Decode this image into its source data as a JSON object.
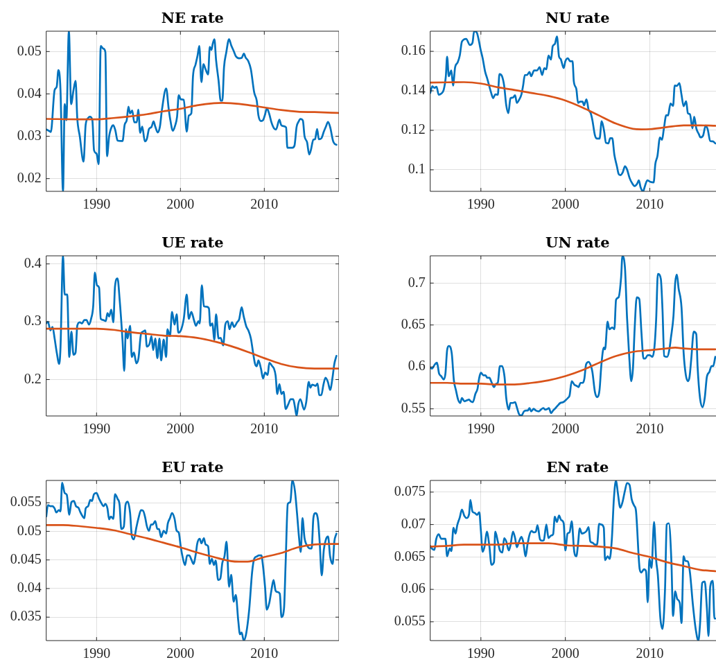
{
  "chart_data": [
    {
      "type": "line",
      "title": "NE rate",
      "xlim": [
        1984,
        2018.9
      ],
      "xticks": [
        1990,
        2000,
        2010
      ],
      "ylim": [
        0.017,
        0.0548
      ],
      "yticks": [
        0.02,
        0.03,
        0.04,
        0.05
      ],
      "grid": true,
      "series": [
        {
          "color": "#0072bd",
          "x": [
            1984,
            1984.4,
            1984.55,
            1985,
            1985.25,
            1985.45,
            1985.7,
            1986,
            1986.2,
            1986.4,
            1986.7,
            1986.97,
            1987.25,
            1987.5,
            1987.7,
            1988,
            1988.45,
            1988.7,
            1989,
            1989.2,
            1989.5,
            1989.7,
            1990,
            1990.25,
            1990.5,
            1990.8,
            1991.05,
            1991.25,
            1991.5,
            1991.85,
            1992,
            1992.25,
            1992.5,
            1992.95,
            1993.1,
            1993.35,
            1993.6,
            1993.8,
            1994,
            1994.25,
            1994.5,
            1994.8,
            1994.97,
            1995.2,
            1995.45,
            1995.75,
            1996,
            1996.25,
            1996.55,
            1996.8,
            1997,
            1997.3,
            1997.55,
            1997.8,
            1998.3,
            1998.6,
            1998.8,
            1999.1,
            1999.35,
            1999.6,
            1999.8,
            2000.05,
            2000.4,
            2000.75,
            2001,
            2001.3,
            2001.5,
            2001.8,
            2002.05,
            2002.25,
            2002.5,
            2002.75,
            2003,
            2003.3,
            2003.5,
            2003.7,
            2003.85,
            2004.05,
            2004.25,
            2004.55,
            2004.8,
            2005,
            2005.2,
            2005.45,
            2005.8,
            2006.05,
            2006.4,
            2006.6,
            2007,
            2007.3,
            2007.57,
            2007.77,
            2008.1,
            2008.4,
            2008.8,
            2009.1,
            2009.3,
            2009.6,
            2009.85,
            2010.1,
            2010.3,
            2010.6,
            2010.85,
            2011.15,
            2011.4,
            2011.8,
            2012,
            2012.25,
            2012.6,
            2012.75,
            2013.1,
            2013.35,
            2013.6,
            2013.85,
            2014.1,
            2014.3,
            2014.6,
            2014.8,
            2015.1,
            2015.35,
            2015.55,
            2015.85,
            2016.05,
            2016.3,
            2016.5,
            2016.8,
            2017.1,
            2017.35,
            2017.6,
            2017.85,
            2018.2,
            2018.4,
            2018.6
          ],
          "values": [
            0.0316,
            0.0312,
            0.031,
            0.0409,
            0.0417,
            0.0456,
            0.0409,
            0.017,
            0.0376,
            0.0338,
            0.0548,
            0.0376,
            0.0409,
            0.0431,
            0.0343,
            0.03,
            0.024,
            0.0327,
            0.0343,
            0.0346,
            0.0338,
            0.0267,
            0.0259,
            0.0234,
            0.0513,
            0.0507,
            0.0499,
            0.0253,
            0.03,
            0.0324,
            0.0326,
            0.0313,
            0.029,
            0.0289,
            0.0289,
            0.0327,
            0.0338,
            0.037,
            0.0354,
            0.0361,
            0.0333,
            0.0333,
            0.0363,
            0.0308,
            0.0323,
            0.0288,
            0.0294,
            0.0317,
            0.0322,
            0.0335,
            0.0323,
            0.0309,
            0.0322,
            0.0363,
            0.0413,
            0.0365,
            0.0338,
            0.0313,
            0.0324,
            0.0346,
            0.0397,
            0.0387,
            0.0386,
            0.0311,
            0.0349,
            0.0354,
            0.0442,
            0.0469,
            0.0491,
            0.0513,
            0.0428,
            0.047,
            0.0458,
            0.0446,
            0.0511,
            0.0504,
            0.0518,
            0.0529,
            0.048,
            0.0431,
            0.0384,
            0.0384,
            0.0463,
            0.0496,
            0.0529,
            0.0515,
            0.0499,
            0.0489,
            0.0484,
            0.0485,
            0.0495,
            0.0486,
            0.0477,
            0.0458,
            0.0403,
            0.0384,
            0.0349,
            0.0336,
            0.0338,
            0.0352,
            0.0366,
            0.0352,
            0.0333,
            0.0319,
            0.0316,
            0.0339,
            0.0327,
            0.0324,
            0.0321,
            0.0273,
            0.0273,
            0.0273,
            0.0278,
            0.0322,
            0.0335,
            0.0341,
            0.0337,
            0.03,
            0.0286,
            0.0257,
            0.0267,
            0.0292,
            0.0293,
            0.0317,
            0.0293,
            0.0295,
            0.0311,
            0.0323,
            0.0334,
            0.0322,
            0.0289,
            0.0282,
            0.028
          ]
        },
        {
          "color": "#d95319",
          "x": [
            1984,
            1988,
            1990,
            1992,
            1994,
            1996,
            1998,
            2000,
            2002,
            2004,
            2005,
            2006,
            2008,
            2010,
            2012,
            2014,
            2016,
            2018.8
          ],
          "values": [
            0.0341,
            0.034,
            0.034,
            0.0343,
            0.0347,
            0.0352,
            0.0359,
            0.0365,
            0.0373,
            0.0378,
            0.0379,
            0.0378,
            0.0374,
            0.0368,
            0.0362,
            0.0358,
            0.0357,
            0.0355
          ]
        }
      ]
    },
    {
      "type": "line",
      "title": "NU rate",
      "xlim": [
        1984,
        2018.9
      ],
      "xticks": [
        1990,
        2000,
        2010
      ],
      "ylim": [
        0.0891,
        0.1702
      ],
      "yticks": [
        0.1,
        0.12,
        0.14,
        0.16
      ],
      "grid": true,
      "series": [
        {
          "color": "#0072bd",
          "x": [
            1984,
            1984.25,
            1984.5,
            1984.75,
            1985,
            1985.3,
            1985.6,
            1985.85,
            1986,
            1986.2,
            1986.5,
            1986.7,
            1986.95,
            1987.25,
            1987.5,
            1987.75,
            1988.25,
            1988.7,
            1989,
            1989.2,
            1989.5,
            1990,
            1990.2,
            1990.5,
            1990.75,
            1991.2,
            1991.45,
            1991.7,
            1992,
            1992.2,
            1992.5,
            1992.75,
            1993,
            1993.25,
            1993.5,
            1993.8,
            1994.05,
            1994.25,
            1994.55,
            1994.8,
            1995,
            1995.2,
            1995.45,
            1995.75,
            1995.95,
            1996.3,
            1996.65,
            1996.95,
            1997.25,
            1997.5,
            1997.75,
            1998,
            1998.3,
            1998.5,
            1998.75,
            1999,
            1999.25,
            1999.45,
            1999.8,
            2000,
            2000.3,
            2000.55,
            2000.85,
            2001,
            2001.3,
            2001.5,
            2001.75,
            2002.05,
            2002.2,
            2002.5,
            2002.75,
            2003,
            2003.2,
            2003.5,
            2003.75,
            2004.05,
            2004.3,
            2004.6,
            2004.8,
            2005.1,
            2005.3,
            2005.55,
            2005.8,
            2006.1,
            2006.3,
            2006.5,
            2006.8,
            2007.05,
            2007.3,
            2007.6,
            2007.85,
            2008.2,
            2008.5,
            2008.7,
            2008.9,
            2009.2,
            2009.4,
            2009.7,
            2010.05,
            2010.45,
            2010.65,
            2010.9,
            2011.2,
            2011.45,
            2011.65,
            2011.95,
            2012.15,
            2012.45,
            2012.75,
            2012.95,
            2013.2,
            2013.5,
            2013.75,
            2014,
            2014.3,
            2014.5,
            2014.75,
            2015.05,
            2015.25,
            2015.5,
            2015.8,
            2016,
            2016.3,
            2016.6,
            2016.85,
            2017.15,
            2017.45,
            2017.75
          ],
          "values": [
            0.1389,
            0.1423,
            0.1415,
            0.1421,
            0.138,
            0.1386,
            0.1406,
            0.1474,
            0.1573,
            0.1474,
            0.1503,
            0.1427,
            0.152,
            0.1544,
            0.1579,
            0.1649,
            0.1663,
            0.1632,
            0.1643,
            0.1702,
            0.1696,
            0.1602,
            0.1567,
            0.1497,
            0.1462,
            0.1392,
            0.1363,
            0.1382,
            0.138,
            0.1485,
            0.1474,
            0.1427,
            0.1327,
            0.1287,
            0.1363,
            0.1366,
            0.1378,
            0.1339,
            0.1357,
            0.1382,
            0.1427,
            0.148,
            0.148,
            0.1495,
            0.1474,
            0.1503,
            0.1503,
            0.152,
            0.148,
            0.1515,
            0.1509,
            0.1579,
            0.1558,
            0.1626,
            0.1637,
            0.1675,
            0.1573,
            0.1561,
            0.1515,
            0.155,
            0.1565,
            0.155,
            0.155,
            0.1448,
            0.1409,
            0.1339,
            0.1345,
            0.1345,
            0.1327,
            0.1357,
            0.1304,
            0.1287,
            0.1251,
            0.1175,
            0.1158,
            0.1158,
            0.1246,
            0.1193,
            0.1137,
            0.1134,
            0.116,
            0.116,
            0.1076,
            0.1018,
            0.098,
            0.0973,
            0.0988,
            0.1018,
            0.1002,
            0.0959,
            0.0936,
            0.0918,
            0.093,
            0.0947,
            0.0912,
            0.0891,
            0.0915,
            0.0947,
            0.0939,
            0.0936,
            0.1029,
            0.107,
            0.1164,
            0.1152,
            0.1205,
            0.1277,
            0.1275,
            0.1336,
            0.1324,
            0.1427,
            0.1425,
            0.1439,
            0.138,
            0.1322,
            0.1347,
            0.1287,
            0.1281,
            0.121,
            0.1269,
            0.121,
            0.1181,
            0.1164,
            0.1173,
            0.1222,
            0.1205,
            0.1146,
            0.1144,
            0.1134
          ]
        },
        {
          "color": "#d95319",
          "x": [
            1984,
            1986,
            1988,
            1990,
            1992,
            1994,
            1996,
            1998,
            2000,
            2002,
            2004,
            2006,
            2008,
            2009,
            2010,
            2012,
            2014,
            2016,
            2017.75
          ],
          "values": [
            0.1442,
            0.1443,
            0.1444,
            0.1437,
            0.1418,
            0.1404,
            0.1389,
            0.1374,
            0.1351,
            0.1316,
            0.1275,
            0.1234,
            0.1208,
            0.1205,
            0.1206,
            0.1216,
            0.1225,
            0.1225,
            0.1223
          ]
        }
      ]
    },
    {
      "type": "line",
      "title": "UE rate",
      "xlim": [
        1984,
        2018.9
      ],
      "xticks": [
        1990,
        2000,
        2010
      ],
      "ylim": [
        0.137,
        0.414
      ],
      "yticks": [
        0.2,
        0.3,
        0.4
      ],
      "grid": true,
      "series": [
        {
          "color": "#0072bd",
          "x": [
            1984,
            1984.2,
            1984.5,
            1984.75,
            1985,
            1985.25,
            1985.55,
            1985.7,
            1986,
            1986.2,
            1986.5,
            1986.75,
            1987,
            1987.25,
            1987.5,
            1987.7,
            1988,
            1988.25,
            1988.55,
            1988.8,
            1989.1,
            1989.35,
            1989.6,
            1989.8,
            1990.05,
            1990.3,
            1990.5,
            1990.8,
            1991.1,
            1991.3,
            1991.5,
            1991.75,
            1992,
            1992.2,
            1992.5,
            1992.75,
            1993.1,
            1993.3,
            1993.5,
            1993.7,
            1994,
            1994.2,
            1994.45,
            1994.75,
            1995,
            1995.3,
            1995.55,
            1995.8,
            1996,
            1996.3,
            1996.55,
            1996.75,
            1997,
            1997.25,
            1997.5,
            1997.7,
            1998,
            1998.3,
            1998.45,
            1998.75,
            1999,
            1999.3,
            1999.55,
            1999.75,
            2000.05,
            2000.4,
            2000.75,
            2001,
            2001.3,
            2001.65,
            2001.85,
            2002.15,
            2002.3,
            2002.55,
            2002.8,
            2003.1,
            2003.4,
            2003.55,
            2003.8,
            2004.05,
            2004.25,
            2004.55,
            2004.8,
            2005.1,
            2005.35,
            2005.65,
            2005.85,
            2006.15,
            2006.4,
            2006.75,
            2007,
            2007.3,
            2007.55,
            2007.85,
            2008.1,
            2008.4,
            2008.7,
            2008.9,
            2009.1,
            2009.3,
            2009.6,
            2009.85,
            2010.1,
            2010.4,
            2010.6,
            2010.95,
            2011.15,
            2011.35,
            2011.55,
            2011.8,
            2012.05,
            2012.3,
            2012.55,
            2012.85,
            2013.15,
            2013.45,
            2013.65,
            2013.85,
            2014.05,
            2014.3,
            2014.75,
            2015,
            2015.3,
            2015.5,
            2015.7,
            2015.95,
            2016.1,
            2016.35,
            2016.55,
            2016.8,
            2017.05,
            2017.3,
            2017.6,
            2017.85,
            2018.15,
            2018.35,
            2018.6
          ],
          "values": [
            0.297,
            0.3,
            0.285,
            0.291,
            0.271,
            0.247,
            0.227,
            0.255,
            0.414,
            0.347,
            0.347,
            0.239,
            0.283,
            0.243,
            0.247,
            0.293,
            0.299,
            0.297,
            0.303,
            0.303,
            0.295,
            0.305,
            0.327,
            0.385,
            0.363,
            0.359,
            0.305,
            0.303,
            0.301,
            0.315,
            0.309,
            0.321,
            0.299,
            0.361,
            0.375,
            0.339,
            0.267,
            0.215,
            0.287,
            0.271,
            0.293,
            0.239,
            0.247,
            0.228,
            0.237,
            0.279,
            0.283,
            0.285,
            0.257,
            0.261,
            0.275,
            0.251,
            0.271,
            0.237,
            0.271,
            0.233,
            0.269,
            0.239,
            0.287,
            0.275,
            0.317,
            0.295,
            0.313,
            0.281,
            0.285,
            0.305,
            0.347,
            0.305,
            0.317,
            0.301,
            0.293,
            0.301,
            0.297,
            0.363,
            0.327,
            0.326,
            0.323,
            0.293,
            0.297,
            0.269,
            0.313,
            0.271,
            0.272,
            0.259,
            0.295,
            0.301,
            0.287,
            0.299,
            0.291,
            0.299,
            0.304,
            0.325,
            0.309,
            0.292,
            0.285,
            0.271,
            0.243,
            0.227,
            0.223,
            0.233,
            0.219,
            0.202,
            0.212,
            0.208,
            0.229,
            0.223,
            0.219,
            0.207,
            0.175,
            0.192,
            0.175,
            0.179,
            0.149,
            0.157,
            0.166,
            0.166,
            0.153,
            0.137,
            0.157,
            0.166,
            0.148,
            0.161,
            0.196,
            0.186,
            0.191,
            0.19,
            0.189,
            0.193,
            0.173,
            0.173,
            0.191,
            0.203,
            0.195,
            0.182,
            0.205,
            0.227,
            0.241
          ]
        },
        {
          "color": "#d95319",
          "x": [
            1984,
            1986,
            1988,
            1990,
            1992,
            1994,
            1996,
            1998,
            2000,
            2002,
            2004,
            2006,
            2008,
            2010,
            2012,
            2014,
            2016,
            2018.8
          ],
          "values": [
            0.288,
            0.288,
            0.288,
            0.288,
            0.286,
            0.282,
            0.279,
            0.276,
            0.275,
            0.272,
            0.266,
            0.258,
            0.248,
            0.237,
            0.227,
            0.221,
            0.219,
            0.219
          ]
        }
      ]
    },
    {
      "type": "line",
      "title": "UN rate",
      "xlim": [
        1984,
        2018.9
      ],
      "xticks": [
        1990,
        2000,
        2010
      ],
      "ylim": [
        0.5415,
        0.7325
      ],
      "yticks": [
        0.55,
        0.6,
        0.65,
        0.7
      ],
      "grid": true,
      "series": [
        {
          "color": "#0072bd",
          "x": [
            1984,
            1984.2,
            1984.55,
            1984.8,
            1985.05,
            1985.3,
            1985.6,
            1985.8,
            1986,
            1986.2,
            1986.55,
            1986.8,
            1987.05,
            1987.3,
            1987.55,
            1987.75,
            1988.05,
            1988.3,
            1988.6,
            1988.8,
            1989.05,
            1989.35,
            1989.6,
            1989.8,
            1990,
            1990.3,
            1990.55,
            1990.75,
            1991,
            1991.25,
            1991.55,
            1991.8,
            1992,
            1992.25,
            1992.5,
            1992.8,
            1993,
            1993.3,
            1993.5,
            1993.8,
            1994.05,
            1994.25,
            1994.55,
            1994.8,
            1995.1,
            1995.35,
            1995.55,
            1995.75,
            1995.95,
            1996.25,
            1996.5,
            1996.85,
            1997.1,
            1997.4,
            1997.6,
            1997.9,
            1998.05,
            1998.3,
            1998.55,
            1998.85,
            1999.1,
            1999.4,
            1999.75,
            2000,
            2000.3,
            2000.5,
            2000.75,
            2001.05,
            2001.4,
            2001.55,
            2001.8,
            2002.05,
            2002.25,
            2002.45,
            2002.75,
            2003,
            2003.2,
            2003.5,
            2003.75,
            2004.05,
            2004.25,
            2004.55,
            2004.7,
            2005,
            2005.2,
            2005.55,
            2005.8,
            2006,
            2006.3,
            2006.6,
            2006.75,
            2007.05,
            2007.3,
            2007.55,
            2007.8,
            2008,
            2008.2,
            2008.45,
            2008.75,
            2009,
            2009.25,
            2009.45,
            2009.75,
            2010,
            2010.3,
            2010.55,
            2010.75,
            2010.95,
            2011.3,
            2011.5,
            2011.7,
            2012.05,
            2012.3,
            2012.5,
            2012.8,
            2013,
            2013.2,
            2013.4,
            2013.75,
            2014,
            2014.25,
            2014.5,
            2014.7,
            2014.9,
            2015.2,
            2015.5,
            2015.65,
            2015.95,
            2016.25,
            2016.5,
            2016.75,
            2017.05,
            2017.3,
            2017.5,
            2017.75
          ],
          "values": [
            0.599,
            0.598,
            0.603,
            0.605,
            0.592,
            0.589,
            0.585,
            0.592,
            0.62,
            0.625,
            0.616,
            0.584,
            0.572,
            0.561,
            0.557,
            0.563,
            0.559,
            0.56,
            0.561,
            0.559,
            0.558,
            0.568,
            0.574,
            0.587,
            0.593,
            0.59,
            0.59,
            0.587,
            0.587,
            0.582,
            0.576,
            0.58,
            0.581,
            0.601,
            0.601,
            0.588,
            0.563,
            0.549,
            0.557,
            0.557,
            0.558,
            0.552,
            0.543,
            0.542,
            0.547,
            0.548,
            0.548,
            0.551,
            0.547,
            0.55,
            0.548,
            0.547,
            0.549,
            0.551,
            0.549,
            0.55,
            0.551,
            0.545,
            0.548,
            0.551,
            0.554,
            0.557,
            0.558,
            0.56,
            0.563,
            0.566,
            0.583,
            0.579,
            0.577,
            0.576,
            0.581,
            0.581,
            0.586,
            0.603,
            0.606,
            0.602,
            0.594,
            0.57,
            0.564,
            0.573,
            0.601,
            0.623,
            0.621,
            0.654,
            0.645,
            0.647,
            0.645,
            0.68,
            0.683,
            0.707,
            0.732,
            0.719,
            0.659,
            0.614,
            0.583,
            0.598,
            0.645,
            0.683,
            0.681,
            0.642,
            0.61,
            0.61,
            0.614,
            0.614,
            0.612,
            0.624,
            0.657,
            0.711,
            0.705,
            0.668,
            0.613,
            0.612,
            0.62,
            0.635,
            0.661,
            0.7,
            0.71,
            0.694,
            0.671,
            0.617,
            0.591,
            0.583,
            0.588,
            0.609,
            0.642,
            0.639,
            0.601,
            0.562,
            0.552,
            0.563,
            0.588,
            0.594,
            0.601,
            0.601,
            0.612
          ]
        },
        {
          "color": "#d95319",
          "x": [
            1984,
            1986,
            1988,
            1990,
            1992,
            1994,
            1996,
            1998,
            2000,
            2002,
            2004,
            2006,
            2008,
            2010,
            2012,
            2013,
            2014,
            2016,
            2017.75
          ],
          "values": [
            0.581,
            0.581,
            0.58,
            0.58,
            0.579,
            0.579,
            0.581,
            0.584,
            0.589,
            0.596,
            0.605,
            0.613,
            0.618,
            0.62,
            0.622,
            0.623,
            0.622,
            0.621,
            0.621
          ]
        }
      ]
    },
    {
      "type": "line",
      "title": "EU rate",
      "xlim": [
        1984,
        2018.9
      ],
      "xticks": [
        1990,
        2000,
        2010
      ],
      "ylim": [
        0.0309,
        0.0589
      ],
      "yticks": [
        0.035,
        0.04,
        0.045,
        0.05,
        0.055
      ],
      "grid": true,
      "series": [
        {
          "color": "#0072bd",
          "x": [
            1984,
            1984.2,
            1984.5,
            1984.75,
            1985,
            1985.2,
            1985.5,
            1985.7,
            1985.9,
            1986.2,
            1986.45,
            1986.75,
            1987,
            1987.3,
            1987.55,
            1987.85,
            1988.05,
            1988.35,
            1988.55,
            1988.7,
            1989,
            1989.25,
            1989.45,
            1989.7,
            1990,
            1990.3,
            1990.55,
            1990.85,
            1991.05,
            1991.3,
            1991.5,
            1991.7,
            1992,
            1992.2,
            1992.5,
            1992.75,
            1992.95,
            1993.25,
            1993.45,
            1993.7,
            1994,
            1994.2,
            1994.45,
            1994.75,
            1995,
            1995.3,
            1995.55,
            1995.8,
            1996,
            1996.25,
            1996.5,
            1996.7,
            1997,
            1997.25,
            1997.45,
            1997.7,
            1998,
            1998.3,
            1998.5,
            1998.75,
            1999,
            1999.3,
            1999.55,
            1999.8,
            2000.05,
            2000.25,
            2000.55,
            2000.8,
            2001.05,
            2001.3,
            2001.55,
            2001.85,
            2002,
            2002.3,
            2002.5,
            2002.8,
            2003,
            2003.3,
            2003.5,
            2003.75,
            2004,
            2004.2,
            2004.5,
            2004.75,
            2005,
            2005.25,
            2005.5,
            2005.8,
            2006.05,
            2006.35,
            2006.6,
            2006.9,
            2007.1,
            2007.3,
            2007.55,
            2007.85,
            2008.2,
            2008.55,
            2008.8,
            2009.1,
            2009.35,
            2009.65,
            2009.85,
            2010.1,
            2010.3,
            2010.6,
            2010.85,
            2011.1,
            2011.35,
            2011.55,
            2011.85,
            2012.05,
            2012.35,
            2012.55,
            2012.8,
            2013.1,
            2013.35,
            2013.65,
            2013.9,
            2014.15,
            2014.35,
            2014.55,
            2014.8,
            2015.15,
            2015.45,
            2015.65,
            2015.85,
            2016.1,
            2016.4,
            2016.6,
            2016.85,
            2017.1,
            2017.35,
            2017.6,
            2017.85,
            2018.15,
            2018.35,
            2018.6
          ],
          "values": [
            0.0526,
            0.0546,
            0.0544,
            0.0544,
            0.054,
            0.0533,
            0.0537,
            0.0535,
            0.0585,
            0.0567,
            0.0564,
            0.0529,
            0.0551,
            0.0553,
            0.0544,
            0.0541,
            0.0534,
            0.0526,
            0.0523,
            0.054,
            0.0544,
            0.0555,
            0.0553,
            0.0565,
            0.0567,
            0.0557,
            0.055,
            0.0544,
            0.0548,
            0.054,
            0.0521,
            0.0526,
            0.0522,
            0.0565,
            0.0557,
            0.0546,
            0.0504,
            0.0508,
            0.0546,
            0.0552,
            0.0532,
            0.0492,
            0.0486,
            0.0507,
            0.0523,
            0.0537,
            0.0536,
            0.0524,
            0.0509,
            0.0501,
            0.0512,
            0.0512,
            0.0518,
            0.0504,
            0.0504,
            0.049,
            0.0501,
            0.0496,
            0.0514,
            0.0523,
            0.0532,
            0.0522,
            0.0501,
            0.0498,
            0.0472,
            0.0456,
            0.0441,
            0.0458,
            0.0458,
            0.0451,
            0.0443,
            0.0462,
            0.0478,
            0.0487,
            0.0479,
            0.0488,
            0.0477,
            0.0474,
            0.0443,
            0.0452,
            0.0441,
            0.0449,
            0.0415,
            0.0417,
            0.0445,
            0.0456,
            0.0482,
            0.0403,
            0.0424,
            0.0377,
            0.0389,
            0.0343,
            0.032,
            0.0323,
            0.0309,
            0.0322,
            0.0363,
            0.0429,
            0.0452,
            0.0456,
            0.0458,
            0.0458,
            0.0439,
            0.0401,
            0.0363,
            0.0375,
            0.0397,
            0.0415,
            0.0396,
            0.0394,
            0.0391,
            0.035,
            0.0365,
            0.0447,
            0.0548,
            0.0551,
            0.0589,
            0.0571,
            0.0532,
            0.0488,
            0.0464,
            0.0523,
            0.0488,
            0.0474,
            0.047,
            0.047,
            0.0523,
            0.0532,
            0.052,
            0.0482,
            0.0423,
            0.0468,
            0.0486,
            0.0491,
            0.0456,
            0.0443,
            0.0482,
            0.0496
          ]
        },
        {
          "color": "#d95319",
          "x": [
            1984,
            1986,
            1988,
            1990,
            1992,
            1994,
            1996,
            1998,
            2000,
            2002,
            2004,
            2006,
            2007,
            2008,
            2010,
            2012,
            2014,
            2016,
            2018.8
          ],
          "values": [
            0.0511,
            0.0511,
            0.0509,
            0.0506,
            0.0502,
            0.0495,
            0.0488,
            0.048,
            0.0472,
            0.0463,
            0.0455,
            0.0448,
            0.0447,
            0.0447,
            0.0455,
            0.0462,
            0.0472,
            0.0477,
            0.0478
          ]
        }
      ]
    },
    {
      "type": "line",
      "title": "EN rate",
      "xlim": [
        1984,
        2018.9
      ],
      "xticks": [
        1990,
        2000,
        2010
      ],
      "ylim": [
        0.0521,
        0.0768
      ],
      "yticks": [
        0.055,
        0.06,
        0.065,
        0.07,
        0.075
      ],
      "grid": true,
      "series": [
        {
          "color": "#0072bd",
          "x": [
            1984,
            1984.2,
            1984.5,
            1984.7,
            1985,
            1985.3,
            1985.6,
            1985.8,
            1986,
            1986.3,
            1986.5,
            1986.75,
            1987,
            1987.2,
            1987.5,
            1987.75,
            1988.05,
            1988.3,
            1988.6,
            1988.75,
            1989,
            1989.25,
            1989.55,
            1989.8,
            1990,
            1990.2,
            1990.45,
            1990.7,
            1991,
            1991.25,
            1991.55,
            1991.7,
            1992,
            1992.25,
            1992.55,
            1992.75,
            1993,
            1993.3,
            1993.5,
            1993.8,
            1994.05,
            1994.25,
            1994.55,
            1994.8,
            1995,
            1995.3,
            1995.5,
            1995.75,
            1996,
            1996.25,
            1996.5,
            1996.7,
            1997,
            1997.25,
            1997.45,
            1997.75,
            1998,
            1998.3,
            1998.55,
            1998.75,
            1999,
            1999.25,
            1999.5,
            1999.8,
            2000,
            2000.25,
            2000.5,
            2000.75,
            2001.05,
            2001.3,
            2001.5,
            2001.7,
            2001.95,
            2002.2,
            2002.5,
            2002.75,
            2002.95,
            2003.2,
            2003.5,
            2003.75,
            2004,
            2004.25,
            2004.55,
            2004.7,
            2005,
            2005.25,
            2005.5,
            2005.75,
            2006,
            2006.2,
            2006.5,
            2006.75,
            2007.05,
            2007.3,
            2007.6,
            2007.85,
            2008.15,
            2008.35,
            2008.8,
            2009,
            2009.3,
            2009.55,
            2009.75,
            2009.95,
            2010.2,
            2010.5,
            2010.75,
            2010.95,
            2011.25,
            2011.5,
            2011.8,
            2012,
            2012.25,
            2012.55,
            2012.75,
            2013,
            2013.25,
            2013.55,
            2013.75,
            2014,
            2014.2,
            2014.5,
            2014.75,
            2015.1,
            2015.45,
            2015.75,
            2015.95,
            2016.2,
            2016.5,
            2016.75,
            2016.95,
            2017.15,
            2017.45,
            2017.65,
            2017.75
          ],
          "values": [
            0.0667,
            0.0663,
            0.0661,
            0.0677,
            0.0685,
            0.0678,
            0.0678,
            0.0678,
            0.0651,
            0.0663,
            0.0659,
            0.0695,
            0.0686,
            0.0699,
            0.0711,
            0.0723,
            0.0713,
            0.071,
            0.0716,
            0.0738,
            0.072,
            0.0718,
            0.0715,
            0.0719,
            0.069,
            0.0658,
            0.0667,
            0.0689,
            0.0667,
            0.0638,
            0.0642,
            0.0689,
            0.0674,
            0.066,
            0.0657,
            0.0679,
            0.0674,
            0.066,
            0.0668,
            0.0689,
            0.0679,
            0.0665,
            0.0675,
            0.0681,
            0.0674,
            0.0651,
            0.0668,
            0.0684,
            0.069,
            0.0688,
            0.0689,
            0.0699,
            0.0677,
            0.0675,
            0.0676,
            0.07,
            0.0679,
            0.0683,
            0.0685,
            0.0712,
            0.0704,
            0.0714,
            0.0707,
            0.0702,
            0.066,
            0.0686,
            0.0688,
            0.0705,
            0.0658,
            0.0651,
            0.067,
            0.0694,
            0.0686,
            0.0687,
            0.069,
            0.0696,
            0.0674,
            0.0672,
            0.0669,
            0.0669,
            0.0701,
            0.07,
            0.0695,
            0.0645,
            0.0651,
            0.0647,
            0.0677,
            0.0741,
            0.0768,
            0.075,
            0.0726,
            0.0734,
            0.0752,
            0.0764,
            0.0761,
            0.0739,
            0.0729,
            0.0722,
            0.0631,
            0.0626,
            0.0631,
            0.0628,
            0.058,
            0.0647,
            0.0633,
            0.0704,
            0.0645,
            0.0622,
            0.0555,
            0.0539,
            0.0601,
            0.07,
            0.0702,
            0.0644,
            0.0559,
            0.0597,
            0.0585,
            0.0579,
            0.0548,
            0.0651,
            0.0644,
            0.0643,
            0.0626,
            0.0576,
            0.0537,
            0.0521,
            0.0548,
            0.061,
            0.0612,
            0.0572,
            0.0528,
            0.0604,
            0.0613,
            0.0555,
            0.0555
          ]
        },
        {
          "color": "#d95319",
          "x": [
            1984,
            1986,
            1988,
            1990,
            1992,
            1994,
            1996,
            1998,
            2000,
            2002,
            2004,
            2006,
            2008,
            2010,
            2012,
            2014,
            2016,
            2017.75
          ],
          "values": [
            0.0666,
            0.0667,
            0.0669,
            0.0669,
            0.0669,
            0.0671,
            0.0671,
            0.0671,
            0.0668,
            0.0667,
            0.0666,
            0.0663,
            0.0656,
            0.065,
            0.0642,
            0.0636,
            0.063,
            0.0628
          ]
        }
      ]
    }
  ]
}
